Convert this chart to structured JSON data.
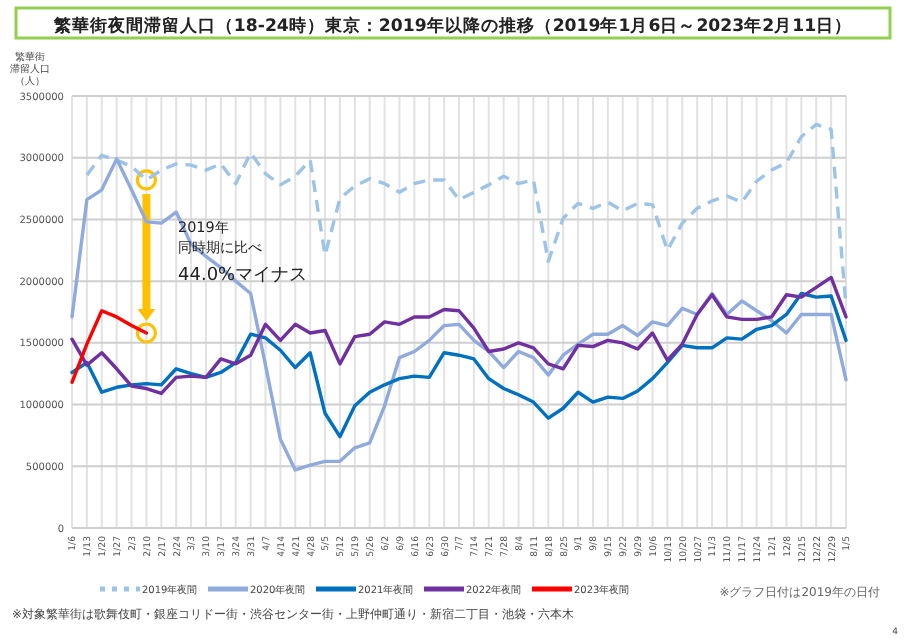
{
  "chart_data": {
    "type": "line",
    "title": "繁華街夜間滞留人口（18-24時）東京：2019年以降の推移（2019年1月6日～2023年2月11日）",
    "ylabel": "繁華街滞留人口（人）",
    "categories": [
      "1/6",
      "1/13",
      "1/20",
      "1/27",
      "2/3",
      "2/10",
      "2/17",
      "2/24",
      "3/3",
      "3/10",
      "3/17",
      "3/24",
      "3/31",
      "4/7",
      "4/14",
      "4/21",
      "4/28",
      "5/5",
      "5/12",
      "5/19",
      "5/26",
      "6/2",
      "6/9",
      "6/16",
      "6/23",
      "6/30",
      "7/7",
      "7/14",
      "7/21",
      "7/28",
      "8/4",
      "8/11",
      "8/18",
      "8/25",
      "9/1",
      "9/8",
      "9/15",
      "9/22",
      "9/29",
      "10/6",
      "10/13",
      "10/20",
      "10/27",
      "11/3",
      "11/10",
      "11/17",
      "11/24",
      "12/1",
      "12/8",
      "12/15",
      "12/22",
      "12/29",
      "1/5"
    ],
    "ylim": [
      0,
      3500000
    ],
    "yticks": [
      0,
      500000,
      1000000,
      1500000,
      2000000,
      2500000,
      3000000,
      3500000
    ],
    "grid": true,
    "legend": "bottom",
    "series": [
      {
        "name": "2019年夜間",
        "color": "#9dc3e6",
        "line_style": "dashed",
        "values": [
          null,
          2860000,
          3020000,
          2980000,
          2930000,
          2820000,
          2900000,
          2950000,
          2940000,
          2900000,
          2950000,
          2790000,
          3040000,
          2870000,
          2780000,
          2850000,
          2980000,
          2210000,
          2670000,
          2770000,
          2830000,
          2790000,
          2720000,
          2790000,
          2820000,
          2820000,
          2660000,
          2720000,
          2780000,
          2850000,
          2790000,
          2820000,
          2160000,
          2510000,
          2630000,
          2590000,
          2640000,
          2570000,
          2630000,
          2620000,
          2250000,
          2470000,
          2590000,
          2650000,
          2690000,
          2640000,
          2810000,
          2900000,
          2960000,
          3170000,
          3270000,
          3230000,
          1800000
        ]
      },
      {
        "name": "2020年夜間",
        "color": "#8faadc",
        "values": [
          1710000,
          2660000,
          2740000,
          2990000,
          2740000,
          2480000,
          2470000,
          2560000,
          2300000,
          2200000,
          2110000,
          2000000,
          1900000,
          1320000,
          720000,
          470000,
          510000,
          540000,
          540000,
          650000,
          690000,
          990000,
          1380000,
          1430000,
          1520000,
          1640000,
          1650000,
          1520000,
          1430000,
          1300000,
          1430000,
          1380000,
          1240000,
          1400000,
          1490000,
          1570000,
          1570000,
          1640000,
          1560000,
          1670000,
          1640000,
          1780000,
          1730000,
          1900000,
          1730000,
          1840000,
          1760000,
          1680000,
          1580000,
          1730000,
          1730000,
          1730000,
          1200000
        ]
      },
      {
        "name": "2021年夜間",
        "color": "#0070c0",
        "values": [
          1260000,
          1340000,
          1100000,
          1140000,
          1160000,
          1170000,
          1160000,
          1290000,
          1250000,
          1220000,
          1260000,
          1340000,
          1570000,
          1540000,
          1440000,
          1300000,
          1420000,
          930000,
          740000,
          990000,
          1100000,
          1160000,
          1210000,
          1230000,
          1220000,
          1420000,
          1400000,
          1370000,
          1210000,
          1130000,
          1080000,
          1020000,
          890000,
          970000,
          1100000,
          1020000,
          1060000,
          1050000,
          1110000,
          1210000,
          1340000,
          1480000,
          1460000,
          1460000,
          1540000,
          1530000,
          1610000,
          1640000,
          1730000,
          1900000,
          1870000,
          1880000,
          1520000
        ]
      },
      {
        "name": "2022年夜間",
        "color": "#7030a0",
        "values": [
          1530000,
          1320000,
          1420000,
          1290000,
          1150000,
          1130000,
          1090000,
          1220000,
          1230000,
          1220000,
          1370000,
          1330000,
          1400000,
          1650000,
          1520000,
          1650000,
          1580000,
          1600000,
          1330000,
          1550000,
          1570000,
          1670000,
          1650000,
          1710000,
          1710000,
          1770000,
          1760000,
          1620000,
          1430000,
          1450000,
          1500000,
          1460000,
          1330000,
          1290000,
          1480000,
          1470000,
          1520000,
          1500000,
          1450000,
          1580000,
          1360000,
          1490000,
          1730000,
          1890000,
          1710000,
          1690000,
          1690000,
          1710000,
          1890000,
          1870000,
          1950000,
          2030000,
          1710000
        ]
      },
      {
        "name": "2023年夜間",
        "color": "#ff0000",
        "values": [
          1180000,
          1490000,
          1760000,
          1710000,
          1640000,
          1580000,
          null,
          null,
          null,
          null,
          null,
          null,
          null,
          null,
          null,
          null,
          null,
          null,
          null,
          null,
          null,
          null,
          null,
          null,
          null,
          null,
          null,
          null,
          null,
          null,
          null,
          null,
          null,
          null,
          null,
          null,
          null,
          null,
          null,
          null,
          null,
          null,
          null,
          null,
          null,
          null,
          null,
          null,
          null,
          null,
          null,
          null,
          null
        ]
      }
    ],
    "annotations": [
      "2019年",
      "同時期に比べ",
      "44.0%マイナス",
      "※対象繁華街は歌舞伎町・銀座コリドー街・渋谷センター街・上野仲町通り・新宿二丁目・池袋・六本木",
      "※グラフ日付は2019年の日付",
      "4"
    ]
  }
}
